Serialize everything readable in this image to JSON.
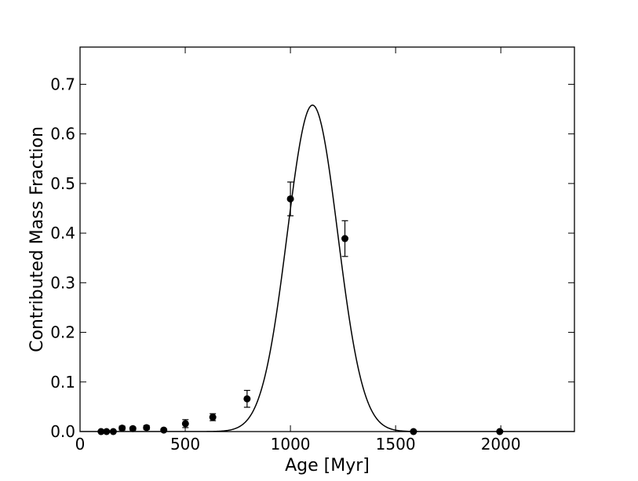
{
  "chart_data": {
    "type": "scatter",
    "title": "",
    "xlabel": "Age [Myr]",
    "ylabel": "Contributed Mass Fraction",
    "xlim": [
      0,
      2350
    ],
    "ylim": [
      0,
      0.775
    ],
    "xticks": [
      0,
      500,
      1000,
      1500,
      2000
    ],
    "yticks": [
      0.0,
      0.1,
      0.2,
      0.3,
      0.4,
      0.5,
      0.6,
      0.7
    ],
    "xtick_labels": [
      "0",
      "500",
      "1000",
      "1500",
      "2000"
    ],
    "ytick_labels": [
      "0.0",
      "0.1",
      "0.2",
      "0.3",
      "0.4",
      "0.5",
      "0.6",
      "0.7"
    ],
    "grid": false,
    "series": [
      {
        "kind": "points-with-errorbars",
        "color": "#000000",
        "points": [
          {
            "x": 100,
            "y": 0.0,
            "err": 0.0
          },
          {
            "x": 126,
            "y": 0.0,
            "err": 0.0
          },
          {
            "x": 158,
            "y": 0.0,
            "err": 0.0
          },
          {
            "x": 200,
            "y": 0.007,
            "err": 0.004
          },
          {
            "x": 251,
            "y": 0.006,
            "err": 0.003
          },
          {
            "x": 316,
            "y": 0.008,
            "err": 0.004
          },
          {
            "x": 398,
            "y": 0.003,
            "err": 0.002
          },
          {
            "x": 501,
            "y": 0.016,
            "err": 0.008
          },
          {
            "x": 631,
            "y": 0.029,
            "err": 0.007
          },
          {
            "x": 794,
            "y": 0.066,
            "err": 0.017
          },
          {
            "x": 1000,
            "y": 0.469,
            "err": 0.034
          },
          {
            "x": 1259,
            "y": 0.389,
            "err": 0.036
          },
          {
            "x": 1585,
            "y": 0.0,
            "err": 0.0
          },
          {
            "x": 1995,
            "y": 0.0,
            "err": 0.0
          }
        ]
      },
      {
        "kind": "gaussian-curve",
        "color": "#000000",
        "peak_x": 1105,
        "peak_y": 0.658,
        "sigma": 120
      }
    ]
  }
}
